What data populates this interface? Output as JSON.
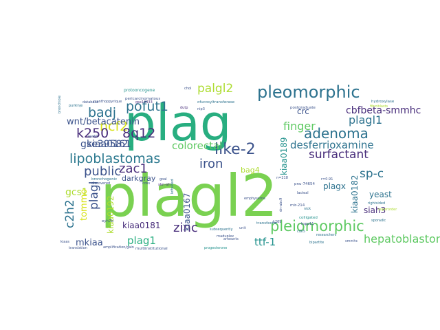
{
  "colors": {
    "purple": "#472c7a",
    "navy": "#3b528b",
    "steel": "#2c728e",
    "teal": "#21918c",
    "sea": "#28ae80",
    "green": "#5ec962",
    "lime": "#addc30",
    "yellow": "#d8e219"
  },
  "words": [
    {
      "text": "plagl2",
      "color": "#7ad151"
    },
    {
      "text": "plag",
      "color": "#28ae80"
    },
    {
      "text": "pleomorphic",
      "color": "#2c728e"
    },
    {
      "text": "pleiomorphic",
      "color": "#5ec962"
    },
    {
      "text": "adenoma",
      "color": "#2c728e"
    },
    {
      "text": "lipoblastomas",
      "color": "#2a788e"
    },
    {
      "text": "like-2",
      "color": "#3b528b"
    },
    {
      "text": "surfactant",
      "color": "#472c7a"
    },
    {
      "text": "pofut1",
      "color": "#2c728e"
    },
    {
      "text": "palgl2",
      "color": "#addc30"
    },
    {
      "text": "badj",
      "color": "#2c728e"
    },
    {
      "text": "ncf2",
      "color": "#d8e219"
    },
    {
      "text": "finger",
      "color": "#5ec962"
    },
    {
      "text": "plagl1",
      "color": "#2c728e"
    },
    {
      "text": "k250",
      "color": "#472c7a"
    },
    {
      "text": "8q12",
      "color": "#472c7a"
    },
    {
      "text": "desferrioxamine",
      "color": "#2c728e"
    },
    {
      "text": "colorectal",
      "color": "#5ec962"
    },
    {
      "text": "iron",
      "color": "#3b528b"
    },
    {
      "text": "public",
      "color": "#3b528b"
    },
    {
      "text": "zac1",
      "color": "#472c7a"
    },
    {
      "text": "sp-c",
      "color": "#2c728e"
    },
    {
      "text": "zinc",
      "color": "#2c728e"
    },
    {
      "text": "plag1",
      "color": "#3b528b"
    },
    {
      "text": "ttf-1",
      "color": "#472c7a"
    },
    {
      "text": "hepatoblastomas",
      "color": "#28ae80"
    },
    {
      "text": "cbfbeta-smmhc",
      "color": "#21918c"
    },
    {
      "text": "crc",
      "color": "#5ec962"
    },
    {
      "text": "gse39582",
      "color": "#472c7a"
    },
    {
      "text": "kiaa0161",
      "color": "#3b528b"
    },
    {
      "text": "gcs1",
      "color": "#3b528b"
    },
    {
      "text": "wnt/betacatenin",
      "color": "#3b528b"
    },
    {
      "text": "c2h2",
      "color": "#addc30"
    },
    {
      "text": "plagl",
      "color": "#3b528b"
    },
    {
      "text": "kiaa0189",
      "color": "#21918c"
    },
    {
      "text": "kiaa0167",
      "color": "#3b528b"
    },
    {
      "text": "kiaa0192",
      "color": "#addc30"
    },
    {
      "text": "kiaa0182",
      "color": "#2c728e"
    },
    {
      "text": "kiaa0181",
      "color": "#472c7a"
    },
    {
      "text": "tommo",
      "color": "#d8e219"
    },
    {
      "text": "mkiaa",
      "color": "#3b528b"
    },
    {
      "text": "bag4",
      "color": "#addc30"
    },
    {
      "text": "darkgray",
      "color": "#3b528b"
    },
    {
      "text": "plagx",
      "color": "#2c728e"
    },
    {
      "text": "yeast",
      "color": "#2c728e"
    },
    {
      "text": "siah3",
      "color": "#472c7a"
    },
    {
      "text": "protooncogene",
      "color": "#21918c"
    },
    {
      "text": "pericarcinomatous",
      "color": "#3b528b"
    },
    {
      "text": "ofucosyltransferase",
      "color": "#2c728e"
    },
    {
      "text": "postgraduate",
      "color": "#3b528b"
    },
    {
      "text": "hydroxylase",
      "color": "#2c728e"
    },
    {
      "text": "fibroblasts",
      "color": "#addc30"
    },
    {
      "text": "pnu-74654",
      "color": "#3b528b"
    },
    {
      "text": "lacteal",
      "color": "#3b528b"
    },
    {
      "text": "r=0.91",
      "color": "#3b528b"
    },
    {
      "text": "mir-214",
      "color": "#3b528b"
    },
    {
      "text": "skn-sh",
      "color": "#472c7a"
    },
    {
      "text": "bronchogenic",
      "color": "#2c728e"
    },
    {
      "text": "emphysema",
      "color": "#3b528b"
    },
    {
      "text": "rightsided",
      "color": "#2c728e"
    },
    {
      "text": "colligated",
      "color": "#21918c"
    },
    {
      "text": "hspa11",
      "color": "#3b528b"
    },
    {
      "text": "transfector",
      "color": "#2c728e"
    },
    {
      "text": "researchers",
      "color": "#2c728e"
    },
    {
      "text": "bipartite",
      "color": "#2c728e"
    },
    {
      "text": "multiinstitutional",
      "color": "#3b528b"
    },
    {
      "text": "amplification/gain",
      "color": "#3b528b"
    },
    {
      "text": "cdk5",
      "color": "#2c728e"
    },
    {
      "text": "progesterone",
      "color": "#21918c"
    },
    {
      "text": "k269",
      "color": "#3b528b"
    },
    {
      "text": "subsequently",
      "color": "#2c728e"
    },
    {
      "text": "eyh7b",
      "color": "#3b528b"
    },
    {
      "text": "discovered",
      "color": "#3b528b"
    },
    {
      "text": "leftsided",
      "color": "#2c728e"
    },
    {
      "text": "database",
      "color": "#3b528b"
    },
    {
      "text": "gse14333",
      "color": "#472c7a"
    },
    {
      "text": "nip3",
      "color": "#3b528b"
    },
    {
      "text": "dutp",
      "color": "#472c7a"
    },
    {
      "text": "chol",
      "color": "#3b528b"
    },
    {
      "text": "cdss",
      "color": "#3b528b"
    },
    {
      "text": "bronchiole",
      "color": "#2c728e"
    },
    {
      "text": "purkinje",
      "color": "#2c728e"
    },
    {
      "text": "nick",
      "color": "#2c728e"
    },
    {
      "text": "translation",
      "color": "#3b528b"
    },
    {
      "text": "n=218",
      "color": "#3b528b"
    },
    {
      "text": "smmhc",
      "color": "#3b528b"
    },
    {
      "text": "goal",
      "color": "#3b528b"
    },
    {
      "text": "xcanthoppyrique",
      "color": "#3b528b"
    },
    {
      "text": "ww60",
      "color": "#3b528b"
    },
    {
      "text": "dn-abc9",
      "color": "#3b528b"
    },
    {
      "text": "unit",
      "color": "#3b528b"
    },
    {
      "text": "rnaduplex",
      "color": "#3b528b"
    },
    {
      "text": "sporadic",
      "color": "#2c728e"
    },
    {
      "text": "amounts",
      "color": "#3b528b"
    },
    {
      "text": "kiaas",
      "color": "#3b528b"
    },
    {
      "text": "superorder",
      "color": "#addc30"
    }
  ]
}
